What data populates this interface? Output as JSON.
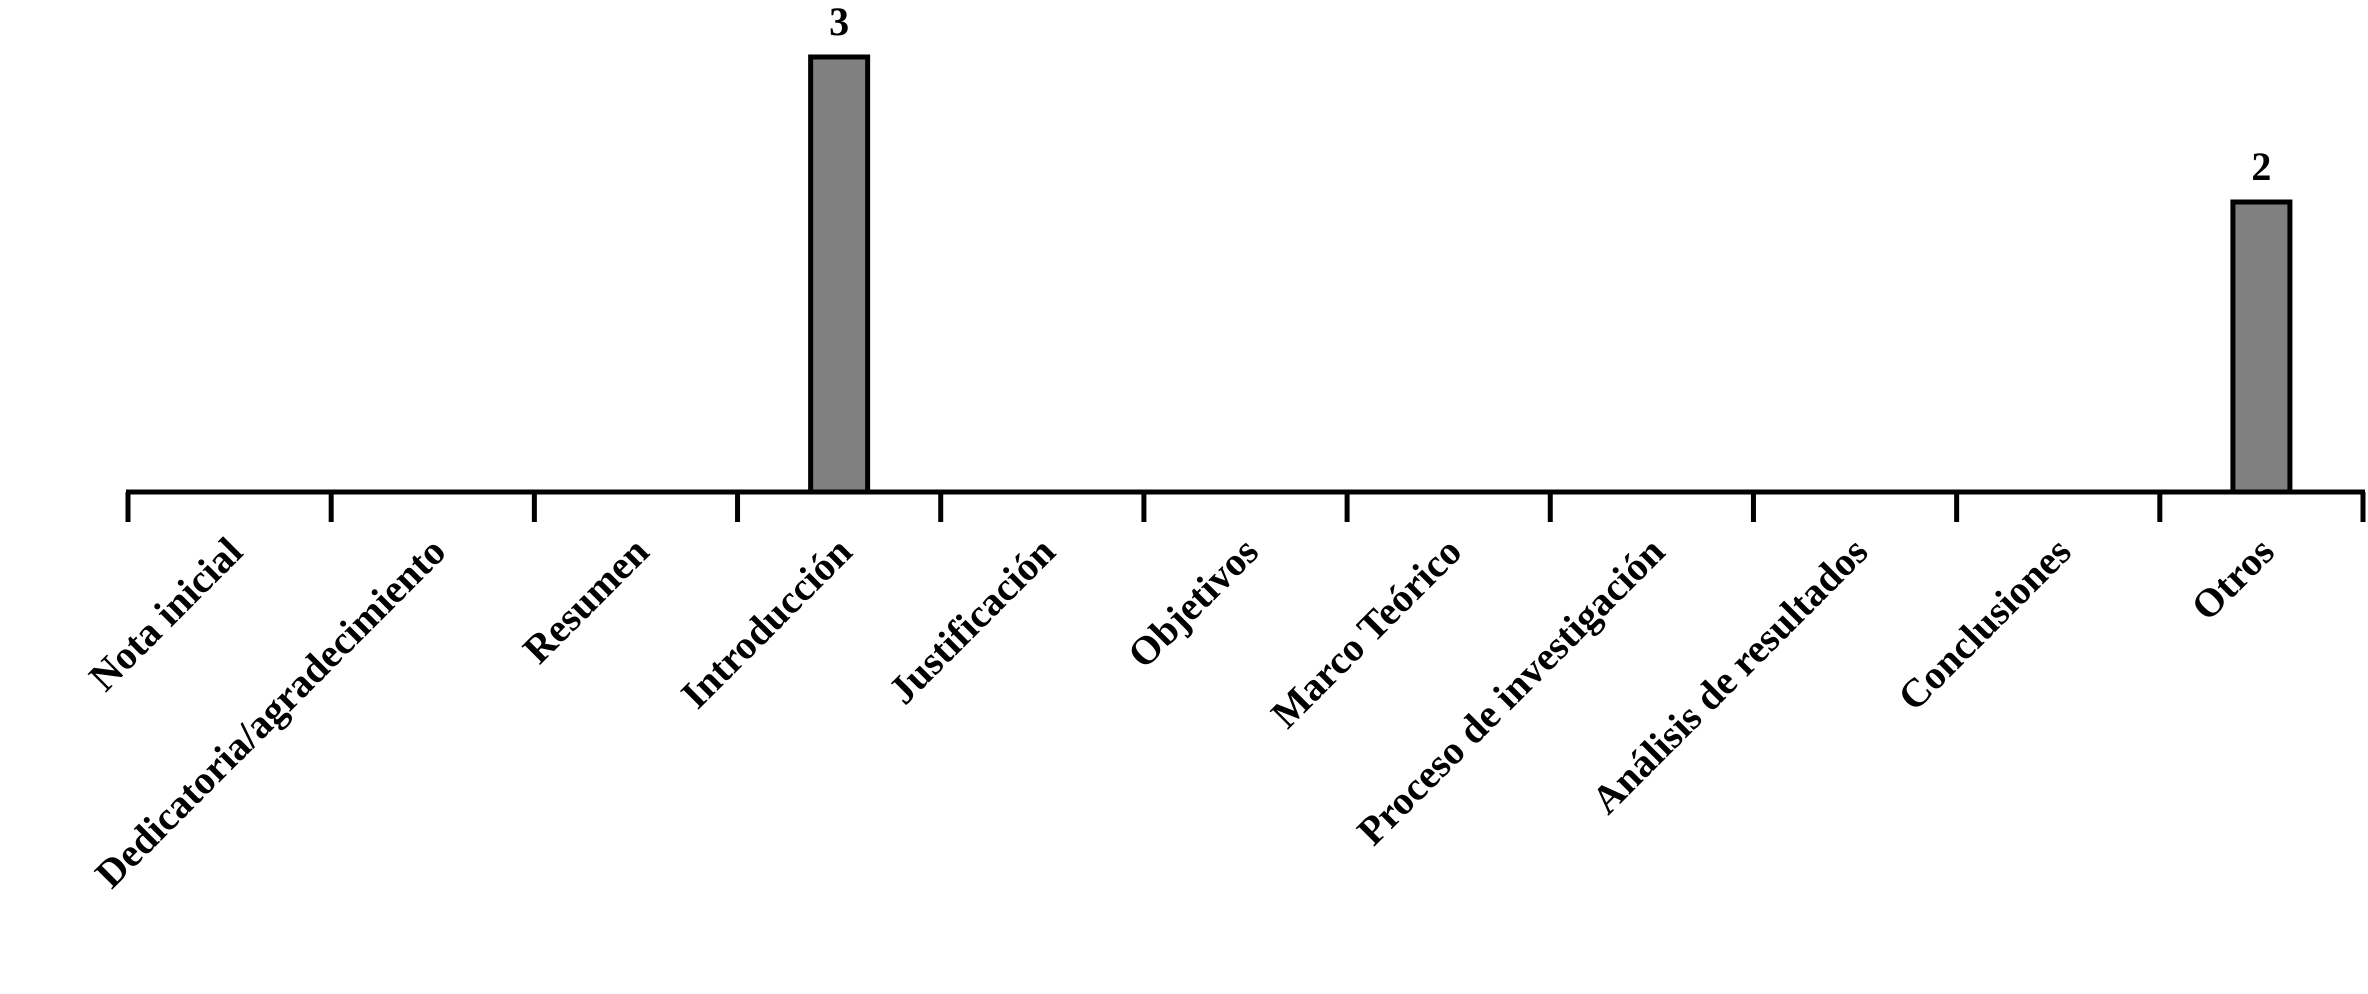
{
  "chart_data": {
    "type": "bar",
    "categories": [
      "Nota inicial",
      "Dedicatoria/agradecimiento",
      "Resumen",
      "Introducción",
      "Justificación",
      "Objetivos",
      "Marco Teórico",
      "Proceso de investigación",
      "Análisis de resultados",
      "Conclusiones",
      "Otros"
    ],
    "values": [
      0,
      0,
      0,
      3,
      0,
      0,
      0,
      0,
      0,
      0,
      2
    ],
    "color": "#808080",
    "ylim": [
      0,
      3
    ]
  }
}
